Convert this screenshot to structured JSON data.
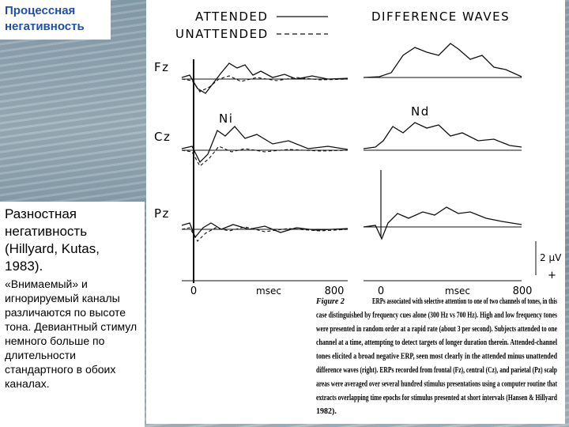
{
  "title": "Процессная негативность",
  "sidebar": {
    "intro": "Разностная негативность (Hillyard, Kutas, 1983).",
    "body": "«Внимаемый» и игнорируемый каналы различаются по высоте тона. Девиантный стимул немного больше по длительности стандартного в обоих каналах."
  },
  "figure": {
    "legend": {
      "attended": "ATTENDED",
      "unattended": "UNATTENDED"
    },
    "right_title": "DIFFERENCE WAVES",
    "channels": [
      "Fz",
      "Cz",
      "Pz"
    ],
    "components": {
      "left": "Ni",
      "right": "Nd"
    },
    "left_axis": {
      "start": "0",
      "unit": "msec",
      "end": "800"
    },
    "right_axis": {
      "start": "0",
      "unit": "msec",
      "end": "800"
    },
    "scale": "2 μV",
    "polarity": "+",
    "caption": {
      "label": "Figure 2",
      "lines": [
        "ERPs associated with selective attention to one of two channels of tones, in this",
        "case distinguished by frequency cues alone (300 Hz vs 700 Hz). High and low frequency tones",
        "were presented in random order at a rapid rate (about 3 per second). Subjects attended to one",
        "channel at a time, attempting to detect targets of longer duration therein. Attended-channel",
        "tones elicited a broad negative ERP, seen most clearly in the attended minus unattended",
        "difference waves (right). ERPs recorded from frontal (Fz), central (Cz), and parietal (Pz) scalp",
        "areas were averaged over several hundred stimulus presentations using a computer routine that",
        "extracts overlapping time epochs for stimulus presented at short intervals (Hansen & Hillyard",
        "1982)."
      ]
    }
  }
}
